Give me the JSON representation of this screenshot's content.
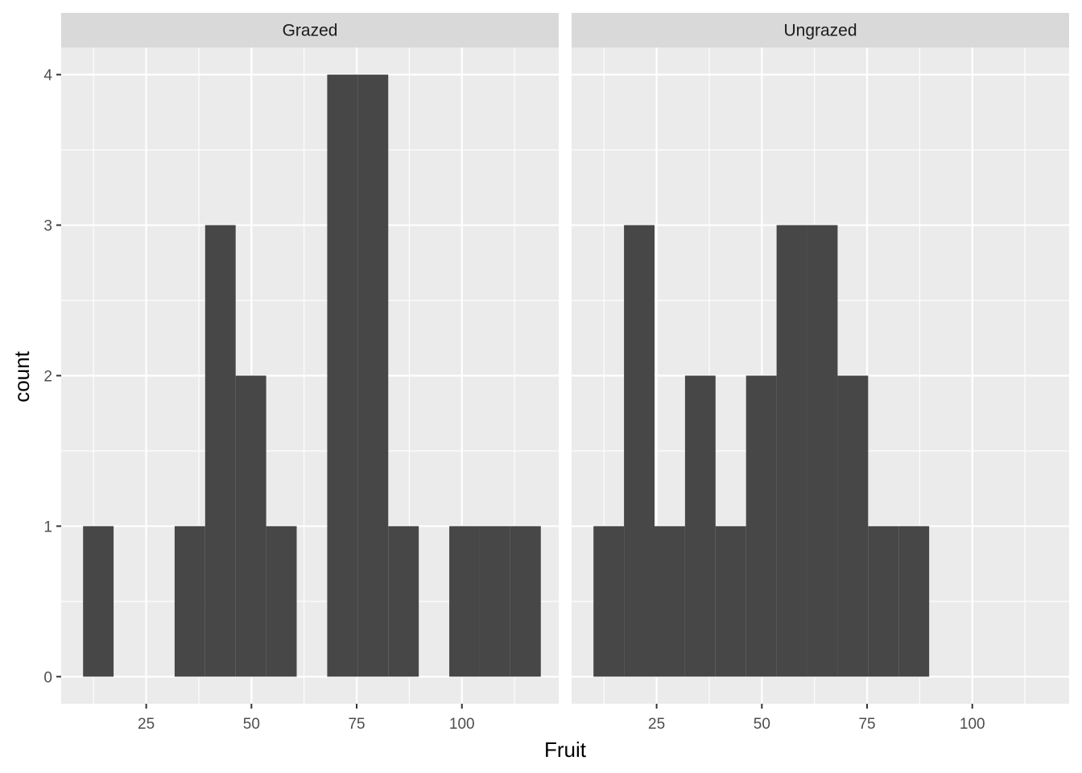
{
  "chart_data": {
    "type": "bar",
    "subtype": "faceted-histogram",
    "xlabel": "Fruit",
    "ylabel": "count",
    "xlim": [
      4.8,
      123
    ],
    "ylim": [
      -0.18,
      4.18
    ],
    "x_ticks": [
      25,
      50,
      75,
      100
    ],
    "x_minor_ticks": [
      12.5,
      37.5,
      62.5,
      87.5,
      112.5
    ],
    "y_ticks": [
      0,
      1,
      2,
      3,
      4
    ],
    "y_minor_ticks": [
      0.5,
      1.5,
      2.5,
      3.5
    ],
    "grid": true,
    "bin_width": 7.25,
    "colors": {
      "bar": "#474747",
      "panel": "#EBEBEB",
      "strip": "#D9D9D9",
      "grid": "#FFFFFF"
    },
    "panels": [
      {
        "label": "Grazed",
        "bins": [
          {
            "x0": 10.0,
            "x1": 17.25,
            "count": 1
          },
          {
            "x0": 17.25,
            "x1": 24.5,
            "count": 0
          },
          {
            "x0": 24.5,
            "x1": 31.75,
            "count": 0
          },
          {
            "x0": 31.75,
            "x1": 39.0,
            "count": 1
          },
          {
            "x0": 39.0,
            "x1": 46.25,
            "count": 3
          },
          {
            "x0": 46.25,
            "x1": 53.5,
            "count": 2
          },
          {
            "x0": 53.5,
            "x1": 60.75,
            "count": 1
          },
          {
            "x0": 60.75,
            "x1": 68.0,
            "count": 0
          },
          {
            "x0": 68.0,
            "x1": 75.25,
            "count": 4
          },
          {
            "x0": 75.25,
            "x1": 82.5,
            "count": 4
          },
          {
            "x0": 82.5,
            "x1": 89.75,
            "count": 1
          },
          {
            "x0": 89.75,
            "x1": 97.0,
            "count": 0
          },
          {
            "x0": 97.0,
            "x1": 104.25,
            "count": 1
          },
          {
            "x0": 104.25,
            "x1": 111.5,
            "count": 1
          },
          {
            "x0": 111.5,
            "x1": 118.75,
            "count": 1
          }
        ]
      },
      {
        "label": "Ungrazed",
        "bins": [
          {
            "x0": 10.0,
            "x1": 17.25,
            "count": 1
          },
          {
            "x0": 17.25,
            "x1": 24.5,
            "count": 3
          },
          {
            "x0": 24.5,
            "x1": 31.75,
            "count": 1
          },
          {
            "x0": 31.75,
            "x1": 39.0,
            "count": 2
          },
          {
            "x0": 39.0,
            "x1": 46.25,
            "count": 1
          },
          {
            "x0": 46.25,
            "x1": 53.5,
            "count": 2
          },
          {
            "x0": 53.5,
            "x1": 60.75,
            "count": 3
          },
          {
            "x0": 60.75,
            "x1": 68.0,
            "count": 3
          },
          {
            "x0": 68.0,
            "x1": 75.25,
            "count": 2
          },
          {
            "x0": 75.25,
            "x1": 82.5,
            "count": 1
          },
          {
            "x0": 82.5,
            "x1": 89.75,
            "count": 1
          }
        ]
      }
    ]
  }
}
